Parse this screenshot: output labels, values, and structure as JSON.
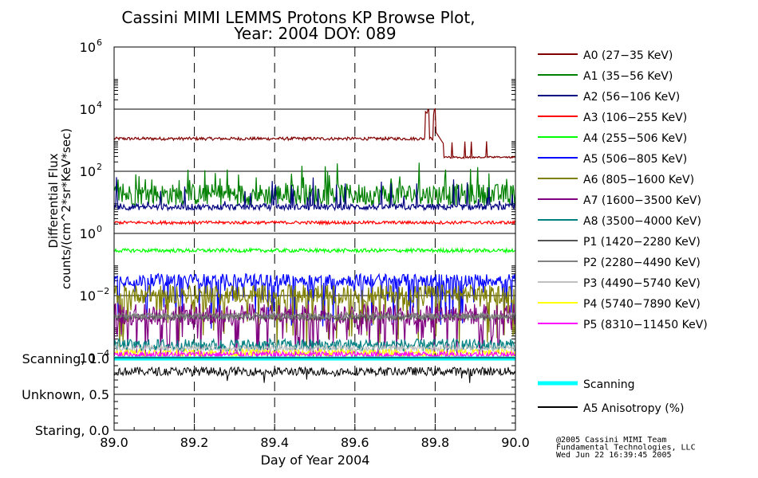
{
  "chart_data": {
    "type": "line",
    "title": "Cassini MIMI LEMMS Protons KP Browse Plot,",
    "subtitle": "Year: 2004 DOY: 089",
    "xlabel": "Day of Year 2004",
    "ylabel_line1": "Differential Flux",
    "ylabel_line2": "counts/(cm^2*sr*KeV*sec)",
    "xlim": [
      89.0,
      90.0
    ],
    "ylim_log10": [
      -4,
      6
    ],
    "x_ticks": [
      "89.0",
      "89.2",
      "89.4",
      "89.6",
      "89.8",
      "90.0"
    ],
    "x_tick_values": [
      89.0,
      89.2,
      89.4,
      89.6,
      89.8,
      90.0
    ],
    "y_tick_exponents": [
      6,
      4,
      2,
      0,
      -2,
      -4
    ],
    "y_tick_base": "10",
    "y_tick_labels": [
      "6",
      "4",
      "2",
      "0",
      "−2",
      "−4"
    ],
    "grid": "dashed vertical at 89.2, 89.4, 89.6, 89.8; solid horizontal at each decade",
    "series": [
      {
        "name": "A0 (27−35 KeV)",
        "color": "#800000",
        "base_log10": 3.05,
        "noise": 0.05,
        "spikes": [
          [
            89.775,
            89.785,
            4.0
          ],
          [
            89.795,
            89.805,
            4.1
          ]
        ],
        "drop_after": [
          89.82,
          2.45
        ]
      },
      {
        "name": "A1 (35−56 KeV)",
        "color": "#008000",
        "base_log10": 1.25,
        "noise": 0.35,
        "spiky": true
      },
      {
        "name": "A2 (56−106 KeV)",
        "color": "#000080",
        "base_log10": 0.85,
        "noise": 0.1,
        "spiky": true
      },
      {
        "name": "A3 (106−255 KeV)",
        "color": "#ff0000",
        "base_log10": 0.35,
        "noise": 0.05
      },
      {
        "name": "A4 (255−506 KeV)",
        "color": "#00ff00",
        "base_log10": -0.55,
        "noise": 0.06
      },
      {
        "name": "A5 (506−805 KeV)",
        "color": "#0000ff",
        "base_log10": -1.5,
        "noise": 0.2,
        "dips": true
      },
      {
        "name": "A6 (805−1600 KeV)",
        "color": "#808000",
        "base_log10": -1.95,
        "noise": 0.3,
        "dips": true
      },
      {
        "name": "A7 (1600−3500 KeV)",
        "color": "#800080",
        "base_log10": -2.6,
        "noise": 0.35,
        "dips": true
      },
      {
        "name": "A8 (3500−4000 KeV)",
        "color": "#008080",
        "base_log10": -3.6,
        "noise": 0.2
      },
      {
        "name": "P1 (1420−2280 KeV)",
        "color": "#555555",
        "base_log10": -2.7,
        "noise": 0.1
      },
      {
        "name": "P2 (2280−4490 KeV)",
        "color": "#808080",
        "base_log10": -2.65,
        "noise": 0.1
      },
      {
        "name": "P3 (4490−5740 KeV)",
        "color": "#c0c0c0",
        "base_log10": -3.7,
        "noise": 0.1
      },
      {
        "name": "P4 (5740−7890 KeV)",
        "color": "#ffff00",
        "base_log10": -3.85,
        "noise": 0.12
      },
      {
        "name": "P5 (8310−11450 KeV)",
        "color": "#ff00ff",
        "base_log10": -3.9,
        "noise": 0.1
      }
    ],
    "lower_panel": {
      "y_labels": [
        "Scanning, 1.0",
        "Unknown, 0.5",
        "Staring, 0.0"
      ],
      "y_values": [
        1.0,
        0.5,
        0.0
      ],
      "series": [
        {
          "name": "Scanning",
          "color": "#00ffff",
          "value": 1.0
        },
        {
          "name": "A5 Anisotropy (%)",
          "color": "#000000",
          "base": 0.82,
          "noise": 0.06
        }
      ]
    },
    "credits": [
      "@2005 Cassini MIMI Team",
      "Fundamental Technologies, LLC",
      "Wed Jun 22 16:39:45 2005"
    ]
  }
}
